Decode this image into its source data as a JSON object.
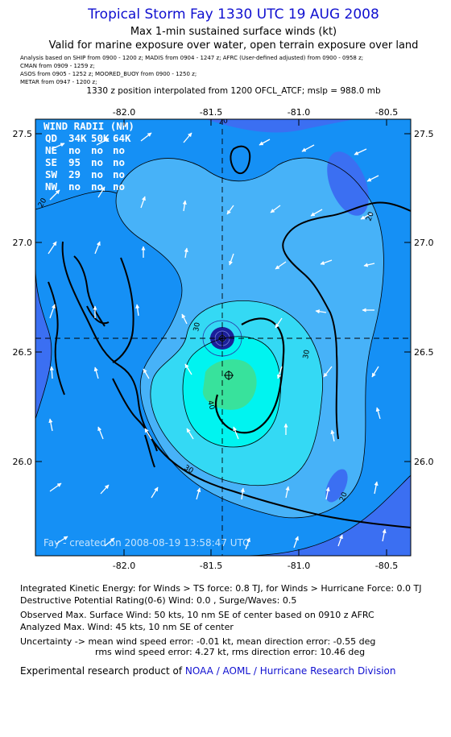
{
  "header": {
    "title": "Tropical Storm Fay 1330 UTC 19 AUG 2008",
    "subtitle": "Max 1-min sustained surface winds (kt)",
    "valid": "Valid for marine exposure over water, open terrain exposure over land",
    "analysis_lines": [
      "Analysis based on   SHIP from 0900 - 1200 z;   MADIS from 0904 - 1247 z;   AFRC (User-defined adjusted) from 0900 - 0958 z;",
      "CMAN from 0909 - 1259 z;",
      "ASOS from 0905 - 1252 z;   MOORED_BUOY from 0900 - 1250 z;",
      "METAR from 0947 - 1200 z;"
    ],
    "interp": "1330 z position interpolated from 1200 OFCL_ATCF; mslp = 988.0 mb"
  },
  "map": {
    "lon_ticks": [
      "-82.0",
      "-81.5",
      "-81.0",
      "-80.5"
    ],
    "lat_ticks": [
      "27.5",
      "27.0",
      "26.5",
      "26.0"
    ],
    "contour_labels": [
      "20",
      "20",
      "20",
      "20",
      "30",
      "30",
      "30",
      "40"
    ],
    "center": {
      "lon": -81.4,
      "lat": 26.55
    },
    "max_wind_marker": {
      "lon": -81.4,
      "lat": 26.39
    },
    "credit": "Fay - created on 2008-08-19  13:58:47 UTC",
    "colors": {
      "c_lt10": "#3b6ff2",
      "c_10_20": "#1590f5",
      "c_20_30": "#47b2f8",
      "c_30_40": "#34d9f4",
      "c_40_50": "#00f4f0",
      "c_50_60": "#38e29c",
      "eye": "#1b1f9a"
    }
  },
  "wind_radii": {
    "title": "WIND RADII (NM)",
    "header": [
      "QD",
      "34K",
      "50K",
      "64K"
    ],
    "rows": [
      [
        "NE",
        "no",
        "no",
        "no"
      ],
      [
        "SE",
        "95",
        "no",
        "no"
      ],
      [
        "SW",
        "29",
        "no",
        "no"
      ],
      [
        "NW",
        "no",
        "no",
        "no"
      ]
    ]
  },
  "footer": {
    "ike": "Integrated Kinetic Energy:  for Winds > TS force: 0.8 TJ,  for Winds > Hurricane Force: 0.0 TJ",
    "dpr": "Destructive Potential Rating(0-6)   Wind: 0.0 , Surge/Waves: 0.5",
    "observed": "Observed Max. Surface Wind: 50 kts, 10 nm SE of center based on 0910 z AFRC",
    "analyzed": "Analyzed Max. Wind: 45 kts, 10 nm SE of center",
    "uncertainty1": "Uncertainty -> mean wind speed error:  -0.01 kt,   mean direction error:  -0.55 deg",
    "uncertainty2": "rms wind speed error: 4.27 kt,   rms direction error: 10.46 deg",
    "credit_prefix": "Experimental research product of ",
    "credit_org": "NOAA / AOML / Hurricane Research Division"
  }
}
